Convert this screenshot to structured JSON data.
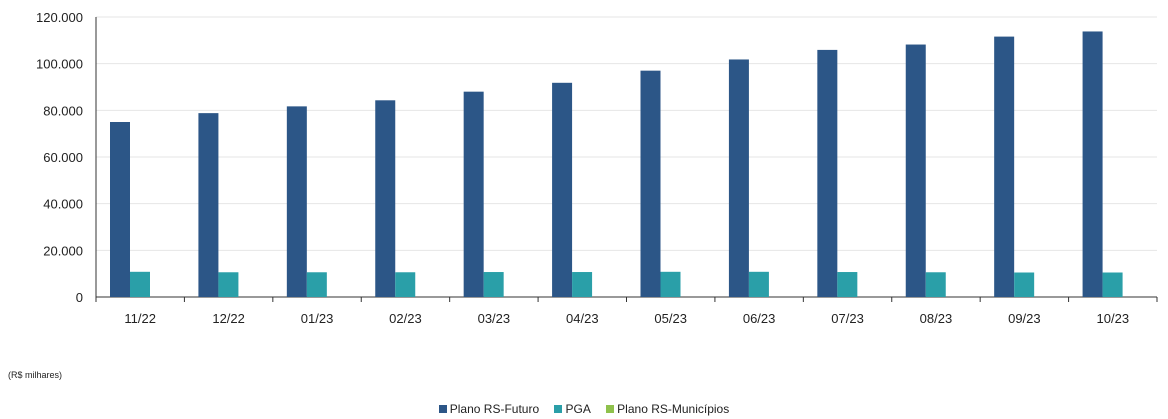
{
  "chart_data": {
    "type": "bar",
    "categories": [
      "11/22",
      "12/22",
      "01/23",
      "02/23",
      "03/23",
      "04/23",
      "05/23",
      "06/23",
      "07/23",
      "08/23",
      "09/23",
      "10/23"
    ],
    "series": [
      {
        "name": "Plano RS-Futuro",
        "color": "#2c5687",
        "values": [
          75000,
          78800,
          81700,
          84300,
          88000,
          91800,
          97000,
          101800,
          105900,
          108200,
          111600,
          113800
        ]
      },
      {
        "name": "PGA",
        "color": "#2a9fa8",
        "values": [
          10800,
          10600,
          10600,
          10600,
          10700,
          10700,
          10800,
          10800,
          10700,
          10600,
          10500,
          10500
        ]
      },
      {
        "name": "Plano RS-Municípios",
        "color": "#8fc14c",
        "values": [
          0,
          0,
          0,
          0,
          0,
          0,
          0,
          0,
          0,
          0,
          0,
          0
        ]
      }
    ],
    "yticks": [
      "0",
      "20.000",
      "40.000",
      "60.000",
      "80.000",
      "100.000",
      "120.000"
    ],
    "ylim": [
      0,
      120000
    ],
    "grid": true,
    "legend_position": "bottom"
  },
  "unit_note": "(R$ milhares)"
}
